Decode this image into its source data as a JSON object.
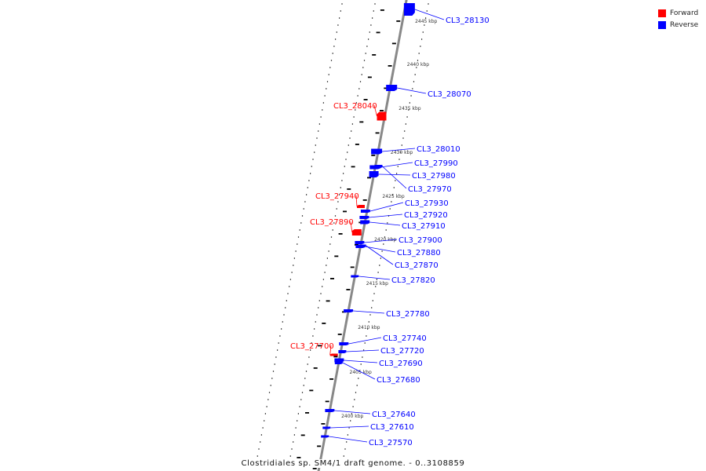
{
  "legend": {
    "forward": {
      "label": "Forward",
      "color": "#ff0000"
    },
    "reverse": {
      "label": "Reverse",
      "color": "#0000ff"
    }
  },
  "caption": "Clostridiales sp. SM4/1 draft genome. - 0..3108859",
  "colors": {
    "backbone": "#888888",
    "ticks": "#000000",
    "forward": "#ff0000",
    "reverse": "#0000ff"
  },
  "scale": {
    "unit": "kbp",
    "labels": [
      "2445 kbp",
      "2440 kbp",
      "2435 kbp",
      "2430 kbp",
      "2425 kbp",
      "2420 kbp",
      "2415 kbp",
      "2410 kbp",
      "2405 kbp",
      "2400 kbp"
    ]
  },
  "genes": [
    {
      "name": "CL3_28130",
      "strand": "reverse"
    },
    {
      "name": "CL3_28070",
      "strand": "reverse"
    },
    {
      "name": "CL3_28040",
      "strand": "forward"
    },
    {
      "name": "CL3_28010",
      "strand": "reverse"
    },
    {
      "name": "CL3_27990",
      "strand": "reverse"
    },
    {
      "name": "CL3_27980",
      "strand": "reverse"
    },
    {
      "name": "CL3_27970",
      "strand": "reverse"
    },
    {
      "name": "CL3_27940",
      "strand": "forward"
    },
    {
      "name": "CL3_27930",
      "strand": "reverse"
    },
    {
      "name": "CL3_27920",
      "strand": "reverse"
    },
    {
      "name": "CL3_27910",
      "strand": "reverse"
    },
    {
      "name": "CL3_27890",
      "strand": "forward"
    },
    {
      "name": "CL3_27900",
      "strand": "reverse"
    },
    {
      "name": "CL3_27880",
      "strand": "reverse"
    },
    {
      "name": "CL3_27870",
      "strand": "reverse"
    },
    {
      "name": "CL3_27820",
      "strand": "reverse"
    },
    {
      "name": "CL3_27780",
      "strand": "reverse"
    },
    {
      "name": "CL3_27740",
      "strand": "reverse"
    },
    {
      "name": "CL3_27720",
      "strand": "reverse"
    },
    {
      "name": "CL3_27700",
      "strand": "forward"
    },
    {
      "name": "CL3_27690",
      "strand": "reverse"
    },
    {
      "name": "CL3_27680",
      "strand": "reverse"
    },
    {
      "name": "CL3_27640",
      "strand": "reverse"
    },
    {
      "name": "CL3_27610",
      "strand": "reverse"
    },
    {
      "name": "CL3_27570",
      "strand": "reverse"
    }
  ]
}
